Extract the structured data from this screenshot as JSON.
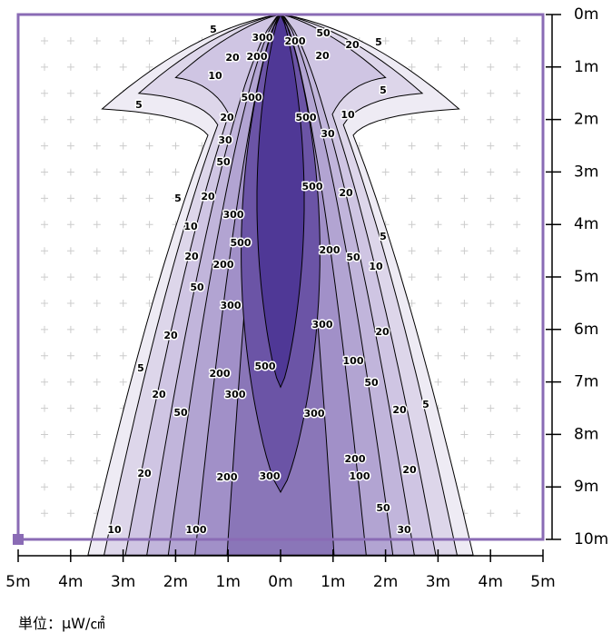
{
  "chart_data": {
    "type": "contour",
    "xlim": [
      -5,
      5
    ],
    "ylim": [
      0,
      10
    ],
    "xticks": [
      {
        "value": -5,
        "label": "5m"
      },
      {
        "value": -4,
        "label": "4m"
      },
      {
        "value": -3,
        "label": "3m"
      },
      {
        "value": -2,
        "label": "2m"
      },
      {
        "value": -1,
        "label": "1m"
      },
      {
        "value": 0,
        "label": "0m"
      },
      {
        "value": 1,
        "label": "1m"
      },
      {
        "value": 2,
        "label": "2m"
      },
      {
        "value": 3,
        "label": "3m"
      },
      {
        "value": 4,
        "label": "4m"
      },
      {
        "value": 5,
        "label": "5m"
      }
    ],
    "yticks": [
      {
        "value": 0,
        "label": "0m"
      },
      {
        "value": 1,
        "label": "1m"
      },
      {
        "value": 2,
        "label": "2m"
      },
      {
        "value": 3,
        "label": "3m"
      },
      {
        "value": 4,
        "label": "4m"
      },
      {
        "value": 5,
        "label": "5m"
      },
      {
        "value": 6,
        "label": "6m"
      },
      {
        "value": 7,
        "label": "7m"
      },
      {
        "value": 8,
        "label": "8m"
      },
      {
        "value": 9,
        "label": "9m"
      },
      {
        "value": 10,
        "label": "10m"
      }
    ],
    "levels": [
      5,
      10,
      20,
      30,
      50,
      100,
      200,
      300,
      500
    ],
    "colors": [
      "#eeebf4",
      "#ddd6ea",
      "#cfc5e3",
      "#c1b5db",
      "#b2a4d2",
      "#a190c8",
      "#8a76b8",
      "#6b54a6",
      "#4f3896"
    ],
    "frame_color": "#8a6bb5",
    "contour_labels": [
      5,
      300,
      200,
      50,
      20,
      5,
      20,
      200,
      20,
      10,
      5,
      5,
      500,
      20,
      500,
      10,
      30,
      30,
      50,
      5,
      20,
      500,
      20,
      300,
      10,
      500,
      5,
      20,
      200,
      50,
      10,
      200,
      50,
      300,
      300,
      20,
      20,
      100,
      5,
      500,
      200,
      50,
      300,
      20,
      5,
      20,
      50,
      300,
      200,
      20,
      200,
      300,
      100,
      20,
      50,
      10,
      100,
      30
    ],
    "unit_label": "単位：μW/㎠"
  }
}
